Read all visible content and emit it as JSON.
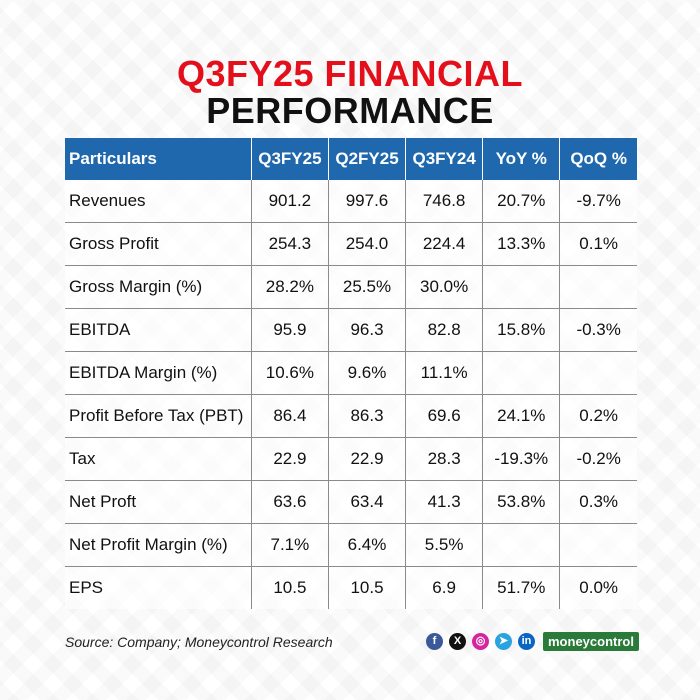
{
  "title": {
    "line1": "Q3FY25 FINANCIAL",
    "line2": "PERFORMANCE"
  },
  "chart_data": {
    "type": "table",
    "columns": [
      "Particulars",
      "Q3FY25",
      "Q2FY25",
      "Q3FY24",
      "YoY %",
      "QoQ %"
    ],
    "rows": [
      [
        "Revenues",
        "901.2",
        "997.6",
        "746.8",
        "20.7%",
        "-9.7%"
      ],
      [
        "Gross Profit",
        "254.3",
        "254.0",
        "224.4",
        "13.3%",
        "0.1%"
      ],
      [
        "Gross Margin (%)",
        "28.2%",
        "25.5%",
        "30.0%",
        "",
        ""
      ],
      [
        "EBITDA",
        "95.9",
        "96.3",
        "82.8",
        "15.8%",
        "-0.3%"
      ],
      [
        "EBITDA Margin (%)",
        "10.6%",
        "9.6%",
        "11.1%",
        "",
        ""
      ],
      [
        "Profit Before Tax (PBT)",
        "86.4",
        "86.3",
        "69.6",
        "24.1%",
        "0.2%"
      ],
      [
        "Tax",
        "22.9",
        "22.9",
        "28.3",
        "-19.3%",
        "-0.2%"
      ],
      [
        "Net Proft",
        "63.6",
        "63.4",
        "41.3",
        "53.8%",
        "0.3%"
      ],
      [
        "Net Profit Margin (%)",
        "7.1%",
        "6.4%",
        "5.5%",
        "",
        ""
      ],
      [
        "EPS",
        "10.5",
        "10.5",
        "6.9",
        "51.7%",
        "0.0%"
      ]
    ]
  },
  "source": "Source: Company; Moneycontrol Research",
  "social": [
    {
      "icon": "facebook-icon",
      "glyph": "f",
      "color": "#3b5998"
    },
    {
      "icon": "x-icon",
      "glyph": "X",
      "color": "#111111"
    },
    {
      "icon": "instagram-icon",
      "glyph": "◎",
      "color": "#d6249f"
    },
    {
      "icon": "telegram-icon",
      "glyph": "➤",
      "color": "#2aa3df"
    },
    {
      "icon": "linkedin-icon",
      "glyph": "in",
      "color": "#0a66c2"
    }
  ],
  "brand": "moneycontrol",
  "colors": {
    "title_red": "#e3101c",
    "header_blue": "#1f68ad",
    "brand_green": "#2a7a3a"
  }
}
